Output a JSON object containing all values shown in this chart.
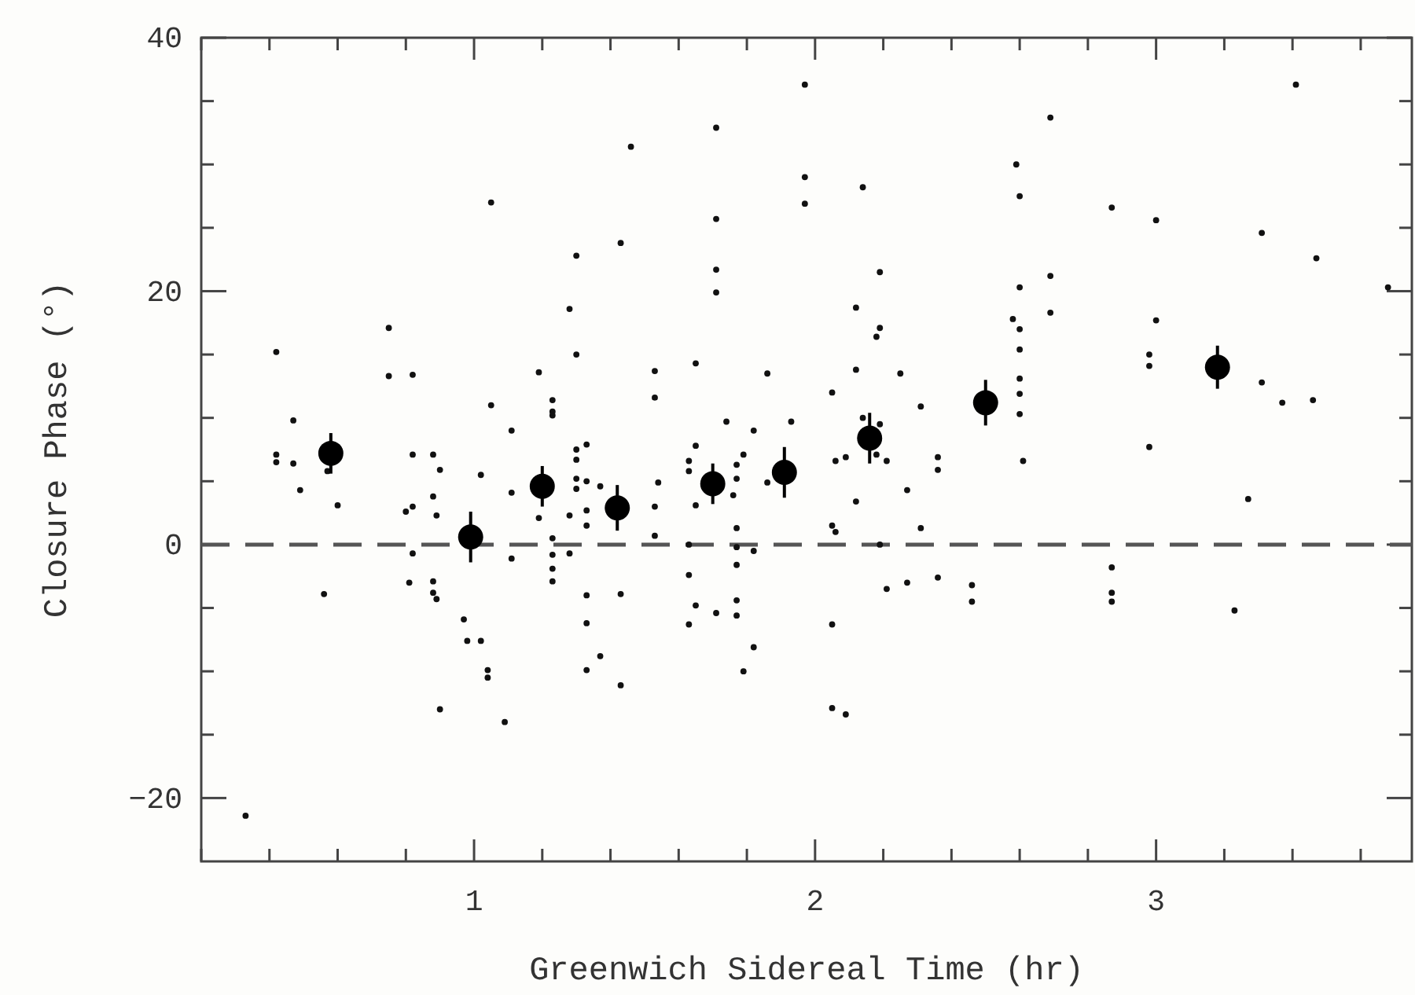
{
  "chart_data": {
    "type": "scatter",
    "xlabel": "Greenwich Sidereal Time (hr)",
    "ylabel": "Closure Phase (°)",
    "xlim": [
      0.2,
      3.75
    ],
    "ylim": [
      -25,
      40
    ],
    "xticks": [
      {
        "value": 0.2,
        "label": null
      },
      {
        "value": 0.4,
        "label": null
      },
      {
        "value": 0.6,
        "label": null
      },
      {
        "value": 0.8,
        "label": null
      },
      1,
      {
        "value": 1.2,
        "label": null
      },
      {
        "value": 1.4,
        "label": null
      },
      {
        "value": 1.6,
        "label": null
      },
      {
        "value": 1.8,
        "label": null
      },
      2,
      {
        "value": 2.2,
        "label": null
      },
      {
        "value": 2.4,
        "label": null
      },
      {
        "value": 2.6,
        "label": null
      },
      {
        "value": 2.8,
        "label": null
      },
      3,
      {
        "value": 3.2,
        "label": null
      },
      {
        "value": 3.4,
        "label": null
      },
      {
        "value": 3.6,
        "label": null
      }
    ],
    "yticks": [
      {
        "value": -20,
        "label": "−20"
      },
      {
        "value": -15,
        "label": null
      },
      {
        "value": -10,
        "label": null
      },
      {
        "value": -5,
        "label": null
      },
      0,
      {
        "value": 5,
        "label": null
      },
      {
        "value": 10,
        "label": null
      },
      {
        "value": 15,
        "label": null
      },
      20,
      {
        "value": 25,
        "label": null
      },
      {
        "value": 30,
        "label": null
      },
      {
        "value": 35,
        "label": null
      },
      40
    ],
    "grid": false,
    "marker": "circle",
    "ref_lines": [
      {
        "axis": "y",
        "value": 0,
        "color": "#555555",
        "line_style": "dashed"
      }
    ],
    "series": [
      {
        "color": "#111111",
        "x": [
          1.05,
          1.3,
          1.28,
          1.3,
          0.42,
          0.75,
          0.75,
          0.82,
          1.19,
          1.05,
          1.23,
          1.23,
          1.23,
          1.11,
          0.47,
          1.3,
          1.33,
          1.97,
          1.71,
          1.46,
          1.97,
          2.14,
          1.97,
          1.71,
          1.43,
          1.71,
          1.71,
          2.19,
          2.12,
          2.19,
          2.18,
          2.58,
          1.53,
          1.53,
          1.65,
          1.86,
          2.12,
          2.25,
          2.05,
          2.31,
          1.74,
          1.82,
          1.93,
          2.14,
          2.19,
          1.65,
          3.41,
          2.69,
          2.59,
          2.6,
          2.87,
          3.0,
          3.31,
          3.47,
          3.68,
          2.69,
          2.6,
          2.69,
          2.6,
          3.0,
          2.6,
          2.98,
          2.98,
          2.6,
          2.6,
          2.6,
          3.31,
          3.37,
          3.46,
          2.98,
          0.42,
          0.42,
          0.47,
          0.49,
          0.57,
          0.6,
          0.82,
          0.88,
          0.9,
          0.88,
          0.89,
          0.8,
          0.82,
          0.82,
          0.56,
          0.81,
          0.88,
          0.88,
          0.89,
          0.9,
          0.97,
          0.98,
          1.02,
          1.04,
          1.04,
          1.09,
          1.02,
          1.11,
          1.11,
          0.33,
          1.19,
          1.23,
          1.23,
          1.23,
          1.23,
          1.28,
          1.28,
          1.3,
          1.3,
          1.3,
          1.33,
          1.33,
          1.33,
          1.37,
          1.33,
          1.33,
          1.37,
          1.33,
          1.43,
          1.43,
          1.53,
          1.53,
          1.54,
          1.63,
          1.63,
          1.65,
          1.63,
          1.63,
          1.65,
          1.71,
          1.63,
          1.77,
          1.77,
          1.76,
          1.79,
          1.77,
          1.77,
          1.77,
          1.82,
          1.77,
          1.77,
          1.82,
          1.79,
          1.86,
          2.06,
          2.09,
          2.12,
          2.05,
          2.06,
          2.19,
          2.05,
          2.05,
          2.09,
          2.18,
          2.21,
          2.21,
          2.27,
          2.27,
          2.31,
          2.36,
          2.36,
          2.36,
          2.46,
          2.46,
          2.61,
          3.27,
          2.87,
          2.87,
          2.87,
          3.23
        ],
        "values": [
          27.0,
          22.8,
          18.6,
          15.0,
          15.2,
          17.1,
          13.3,
          13.4,
          13.6,
          11.0,
          11.4,
          10.5,
          10.2,
          9.0,
          9.8,
          7.5,
          7.9,
          36.3,
          32.9,
          31.4,
          29.0,
          28.2,
          26.9,
          25.7,
          23.8,
          21.7,
          19.9,
          21.5,
          18.7,
          17.1,
          16.4,
          17.8,
          13.7,
          11.6,
          14.3,
          13.5,
          13.8,
          13.5,
          12.0,
          10.9,
          9.7,
          9.0,
          9.7,
          10.0,
          9.5,
          7.8,
          36.3,
          33.7,
          30.0,
          27.5,
          26.6,
          25.6,
          24.6,
          22.6,
          20.3,
          21.2,
          20.3,
          18.3,
          17.0,
          17.7,
          15.4,
          15.0,
          14.1,
          13.1,
          11.9,
          10.3,
          12.8,
          11.2,
          11.4,
          7.7,
          7.1,
          6.5,
          6.4,
          4.3,
          5.8,
          3.1,
          7.1,
          7.1,
          5.9,
          3.8,
          2.3,
          2.6,
          3.0,
          -0.7,
          -3.9,
          -3.0,
          -2.9,
          -3.8,
          -4.3,
          -13.0,
          -5.9,
          -7.6,
          -7.6,
          -9.9,
          -10.5,
          -14.0,
          5.5,
          4.1,
          -1.1,
          -21.4,
          2.1,
          0.5,
          -0.8,
          -1.9,
          -2.9,
          2.3,
          -0.7,
          6.7,
          5.2,
          4.4,
          5.0,
          2.7,
          1.5,
          4.6,
          -4.0,
          -6.2,
          -8.8,
          -9.9,
          -3.9,
          -11.1,
          3.0,
          0.7,
          4.9,
          6.6,
          5.8,
          3.1,
          0.0,
          -2.4,
          -4.8,
          -5.4,
          -6.3,
          6.3,
          5.2,
          3.9,
          7.1,
          1.3,
          -0.2,
          -1.6,
          -0.5,
          -4.4,
          -5.6,
          -8.1,
          -10.0,
          4.9,
          6.6,
          6.9,
          3.4,
          1.5,
          1.0,
          0.0,
          -6.3,
          -12.9,
          -13.4,
          7.1,
          6.6,
          -3.5,
          4.3,
          -3.0,
          1.3,
          6.9,
          5.9,
          -2.6,
          -3.2,
          -4.5,
          6.6,
          3.6,
          -1.8,
          -3.8,
          -4.5,
          -5.2
        ]
      },
      {
        "color": "#000000",
        "x": [
          0.58,
          0.99,
          1.2,
          1.42,
          1.7,
          1.91,
          2.16,
          2.5,
          3.18
        ],
        "values": [
          7.2,
          0.6,
          4.6,
          2.9,
          4.8,
          5.7,
          8.4,
          11.2,
          14.0
        ],
        "errors": [
          1.6,
          2.0,
          1.6,
          1.8,
          1.6,
          2.0,
          2.0,
          1.8,
          1.7
        ]
      }
    ]
  }
}
